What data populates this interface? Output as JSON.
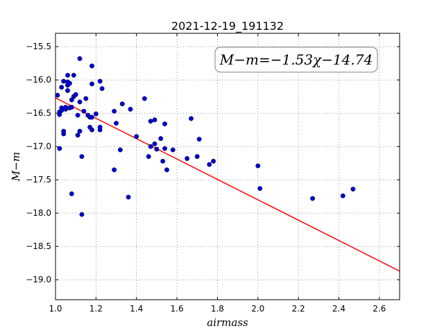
{
  "chart_data": {
    "type": "scatter",
    "title": "2021-12-19_191132",
    "xlabel": "airmass",
    "ylabel": "M−m",
    "xlim": [
      1.0,
      2.7
    ],
    "ylim": [
      -19.3,
      -15.3
    ],
    "xticks": [
      1.0,
      1.2,
      1.4,
      1.6,
      1.8,
      2.0,
      2.2,
      2.4,
      2.6
    ],
    "xtick_labels": [
      "1.0",
      "1.2",
      "1.4",
      "1.6",
      "1.8",
      "2.0",
      "2.2",
      "2.4",
      "2.6"
    ],
    "yticks": [
      -15.5,
      -16.0,
      -16.5,
      -17.0,
      -17.5,
      -18.0,
      -18.5,
      -19.0
    ],
    "ytick_labels": [
      "−15.5",
      "−16.0",
      "−16.5",
      "−17.0",
      "−17.5",
      "−18.0",
      "−18.5",
      "−19.0"
    ],
    "grid": true,
    "annotation": "M−m=−1.53χ−14.74",
    "fit": {
      "slope": -1.53,
      "intercept": -14.74,
      "color": "#ff0000"
    },
    "point_color": "#0000cc",
    "points": [
      [
        1.01,
        -16.23
      ],
      [
        1.02,
        -16.48
      ],
      [
        1.02,
        -16.52
      ],
      [
        1.02,
        -17.03
      ],
      [
        1.03,
        -16.42
      ],
      [
        1.03,
        -16.46
      ],
      [
        1.03,
        -16.11
      ],
      [
        1.04,
        -16.77
      ],
      [
        1.04,
        -16.81
      ],
      [
        1.04,
        -16.02
      ],
      [
        1.05,
        -16.44
      ],
      [
        1.05,
        -16.41
      ],
      [
        1.06,
        -16.08
      ],
      [
        1.06,
        -16.16
      ],
      [
        1.06,
        -15.93
      ],
      [
        1.06,
        -16.03
      ],
      [
        1.07,
        -16.42
      ],
      [
        1.07,
        -16.05
      ],
      [
        1.08,
        -16.3
      ],
      [
        1.08,
        -16.41
      ],
      [
        1.08,
        -17.71
      ],
      [
        1.09,
        -16.25
      ],
      [
        1.09,
        -15.93
      ],
      [
        1.1,
        -16.22
      ],
      [
        1.11,
        -16.83
      ],
      [
        1.11,
        -16.53
      ],
      [
        1.12,
        -16.77
      ],
      [
        1.12,
        -15.68
      ],
      [
        1.12,
        -16.33
      ],
      [
        1.13,
        -18.02
      ],
      [
        1.13,
        -17.15
      ],
      [
        1.14,
        -16.47
      ],
      [
        1.15,
        -16.28
      ],
      [
        1.16,
        -16.53
      ],
      [
        1.17,
        -16.56
      ],
      [
        1.17,
        -16.71
      ],
      [
        1.18,
        -16.75
      ],
      [
        1.18,
        -16.56
      ],
      [
        1.18,
        -15.79
      ],
      [
        1.18,
        -16.06
      ],
      [
        1.2,
        -16.51
      ],
      [
        1.22,
        -16.75
      ],
      [
        1.22,
        -16.71
      ],
      [
        1.22,
        -16.02
      ],
      [
        1.23,
        -16.13
      ],
      [
        1.29,
        -17.35
      ],
      [
        1.29,
        -16.47
      ],
      [
        1.3,
        -16.65
      ],
      [
        1.32,
        -17.05
      ],
      [
        1.33,
        -16.36
      ],
      [
        1.36,
        -17.76
      ],
      [
        1.37,
        -16.44
      ],
      [
        1.4,
        -16.85
      ],
      [
        1.44,
        -16.28
      ],
      [
        1.46,
        -17.15
      ],
      [
        1.47,
        -17.0
      ],
      [
        1.47,
        -16.62
      ],
      [
        1.49,
        -16.96
      ],
      [
        1.49,
        -16.6
      ],
      [
        1.5,
        -17.04
      ],
      [
        1.52,
        -16.88
      ],
      [
        1.53,
        -17.22
      ],
      [
        1.54,
        -16.66
      ],
      [
        1.54,
        -17.03
      ],
      [
        1.55,
        -17.35
      ],
      [
        1.58,
        -17.05
      ],
      [
        1.65,
        -17.18
      ],
      [
        1.67,
        -16.58
      ],
      [
        1.7,
        -17.15
      ],
      [
        1.71,
        -16.89
      ],
      [
        1.76,
        -17.27
      ],
      [
        1.78,
        -17.22
      ],
      [
        2.0,
        -17.29
      ],
      [
        2.01,
        -17.63
      ],
      [
        2.27,
        -17.78
      ],
      [
        2.42,
        -17.74
      ],
      [
        2.47,
        -17.64
      ]
    ]
  }
}
